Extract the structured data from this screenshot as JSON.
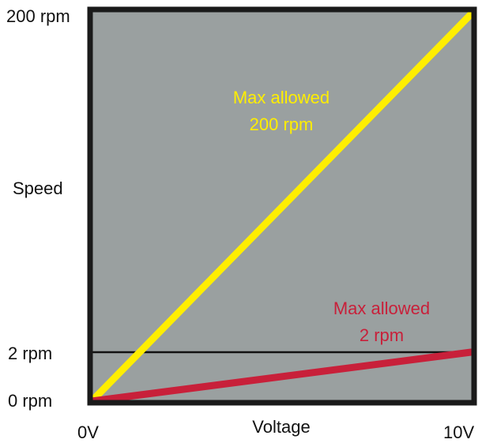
{
  "chart_data": {
    "type": "line",
    "xlabel": "Voltage",
    "ylabel": "Speed",
    "x_tick_labels": [
      "0V",
      "10V"
    ],
    "y_tick_labels": [
      "200 rpm",
      "2 rpm",
      "0 rpm"
    ],
    "x": [
      0,
      10
    ],
    "xlim": [
      0,
      10
    ],
    "ylim": [
      0,
      200
    ],
    "x_ticks": [
      0,
      10
    ],
    "y_ticks": [
      200,
      2,
      0
    ],
    "grid": false,
    "plot_background": "#9aa0a0",
    "frame_color": "#1a1a1a",
    "series": [
      {
        "color": "#ffee00",
        "x": [
          0,
          10
        ],
        "values": [
          0,
          200
        ]
      },
      {
        "color": "#c8203a",
        "x": [
          0,
          10
        ],
        "values": [
          0,
          2
        ]
      }
    ],
    "reference_lines": [
      {
        "orientation": "horizontal",
        "value": 2,
        "color": "#111111"
      }
    ],
    "annotations": [
      {
        "lines": [
          "Max allowed",
          "200 rpm"
        ],
        "color": "#ffee00"
      },
      {
        "lines": [
          "Max allowed",
          "2 rpm"
        ],
        "color": "#c8203a"
      }
    ]
  }
}
